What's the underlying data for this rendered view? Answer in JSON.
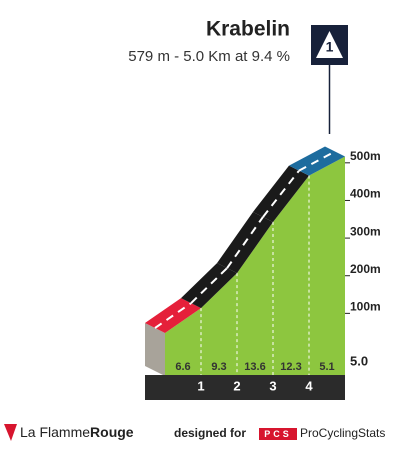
{
  "chart_data": {
    "type": "climb-profile",
    "title": "Krabelin",
    "subtitle": "579 m - 5.0 Km at 9.4 %",
    "category": "1",
    "xticks": [
      1,
      2,
      3,
      4
    ],
    "distance": "5.0",
    "xlim": [
      0,
      5
    ],
    "values": [
      6.6,
      9.3,
      13.6,
      12.3,
      5.1
    ],
    "colors": [
      "#e5203a",
      "#1a1a1a",
      "#1a1a1a",
      "#1a1a1a",
      "#1d6c9e"
    ],
    "ylim": [
      0,
      550
    ],
    "yticks": [
      {
        "value": 100,
        "label": "100m"
      },
      {
        "value": 200,
        "label": "200m"
      },
      {
        "value": 300,
        "label": "300m"
      },
      {
        "value": 400,
        "label": "400m"
      },
      {
        "value": 500,
        "label": "500m"
      }
    ]
  },
  "footer": {
    "brand_light": "La Flamme",
    "brand_bold": "Rouge",
    "designed_for": "designed for",
    "logo": "PCS",
    "site": "ProCyclingStats"
  }
}
